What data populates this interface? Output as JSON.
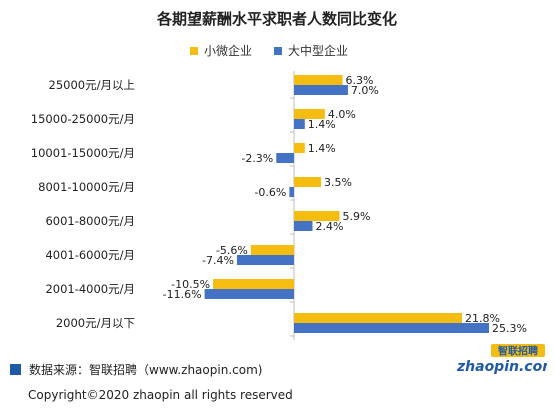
{
  "title": "各期望薪酬水平求职者人数同比变化",
  "legend": [
    {
      "name": "小微企业",
      "color": "#F5BD11"
    },
    {
      "name": "大中型企业",
      "color": "#4472C4"
    }
  ],
  "chart_data": {
    "type": "bar",
    "orientation": "horizontal",
    "title": "各期望薪酬水平求职者人数同比变化",
    "categories": [
      "25000元/月以上",
      "15000-25000元/月",
      "10001-15000元/月",
      "8001-10000元/月",
      "6001-8000元/月",
      "4001-6000元/月",
      "2001-4000元/月",
      "2000元/月以下"
    ],
    "series": [
      {
        "name": "小微企业",
        "color": "#F5BD11",
        "values": [
          6.3,
          4.0,
          1.4,
          3.5,
          5.9,
          -5.6,
          -10.5,
          21.8
        ]
      },
      {
        "name": "大中型企业",
        "color": "#4472C4",
        "values": [
          7.0,
          1.4,
          -2.3,
          -0.6,
          2.4,
          -7.4,
          -11.6,
          25.3
        ]
      }
    ],
    "value_suffix": "%",
    "xlim": [
      -12,
      26
    ],
    "grid": false,
    "legend_position": "top"
  },
  "source_text": "数据来源：智联招聘（www.zhaopin.com)",
  "logo": {
    "cn": "智联招聘",
    "en": "zhaopin.com"
  },
  "copyright": "Copyright©2020 zhaopin all rights reserved"
}
